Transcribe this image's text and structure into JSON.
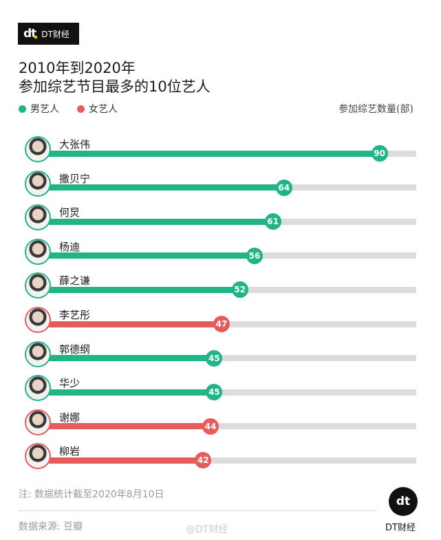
{
  "brand": {
    "mark": "dt",
    "name": "DT财经"
  },
  "chart_data": {
    "type": "bar",
    "orientation": "horizontal",
    "title": [
      "2010年到2020年",
      "参加综艺节目最多的10位艺人"
    ],
    "ylabel": "参加综艺数量(部)",
    "xlim": [
      0,
      100
    ],
    "grid": false,
    "legend": {
      "placement": "top-left",
      "entries": [
        {
          "name": "男艺人",
          "color": "#20b486"
        },
        {
          "name": "女艺人",
          "color": "#e65c5c"
        }
      ]
    },
    "categories": [
      "大张伟",
      "撒贝宁",
      "何炅",
      "杨迪",
      "薛之谦",
      "李艺彤",
      "郭德纲",
      "华少",
      "谢娜",
      "柳岩"
    ],
    "values": [
      90,
      64,
      61,
      56,
      52,
      47,
      45,
      45,
      44,
      42
    ],
    "groups": [
      "男艺人",
      "男艺人",
      "男艺人",
      "男艺人",
      "男艺人",
      "女艺人",
      "男艺人",
      "男艺人",
      "女艺人",
      "女艺人"
    ]
  },
  "footer": {
    "note": "注: 数据统计截至2020年8月10日",
    "source": "数据来源: 豆瓣",
    "weibo": "@DT财经",
    "logo_mark": "dt",
    "logo_name": "DT财经"
  },
  "colors": {
    "male": "#20b486",
    "female": "#e65c5c",
    "track": "#dcdcdc"
  }
}
